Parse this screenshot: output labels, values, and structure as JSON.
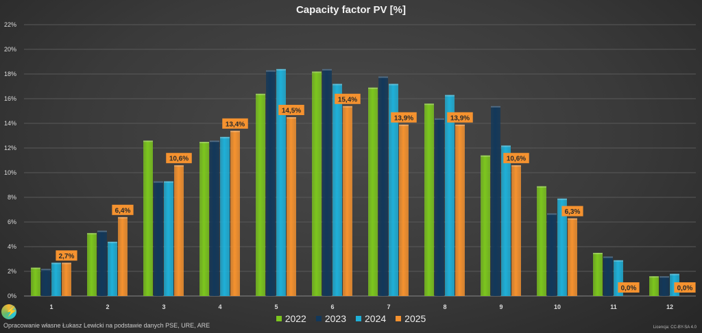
{
  "chart_data": {
    "type": "bar",
    "title": "Capacity factor PV [%]",
    "categories": [
      "1",
      "2",
      "3",
      "4",
      "5",
      "6",
      "7",
      "8",
      "9",
      "10",
      "11",
      "12"
    ],
    "series": [
      {
        "name": "2022",
        "color": "#7cc61e",
        "values": [
          2.3,
          5.1,
          12.6,
          12.5,
          16.4,
          18.2,
          16.9,
          15.6,
          11.4,
          8.9,
          3.5,
          1.6
        ]
      },
      {
        "name": "2023",
        "color": "#12385a",
        "values": [
          2.2,
          5.3,
          9.3,
          12.6,
          18.3,
          18.4,
          17.8,
          14.4,
          15.4,
          6.7,
          3.2,
          1.6
        ]
      },
      {
        "name": "2024",
        "color": "#1fb0d8",
        "values": [
          2.7,
          4.4,
          9.3,
          12.9,
          18.4,
          17.2,
          17.2,
          16.3,
          12.2,
          7.9,
          2.9,
          1.8
        ]
      },
      {
        "name": "2025",
        "color": "#f5922f",
        "values": [
          2.7,
          6.4,
          10.6,
          13.4,
          14.5,
          15.4,
          13.9,
          13.9,
          10.6,
          6.3,
          0.0,
          0.0
        ],
        "data_labels": [
          "2,7%",
          "6,4%",
          "10,6%",
          "13,4%",
          "14,5%",
          "15,4%",
          "13,9%",
          "13,9%",
          "10,6%",
          "6,3%",
          "0,0%",
          "0,0%"
        ]
      }
    ],
    "ylim": [
      0,
      22
    ],
    "yticks": [
      "0%",
      "2%",
      "4%",
      "6%",
      "8%",
      "10%",
      "12%",
      "14%",
      "16%",
      "18%",
      "20%",
      "22%"
    ],
    "grid": true,
    "legend": "bottom"
  },
  "footer": {
    "credit": "Opracowanie własne Łukasz Lewicki na podstawie danych PSE, URE, ARE",
    "license": "Licencja: CC-BY-SA 4.0"
  }
}
